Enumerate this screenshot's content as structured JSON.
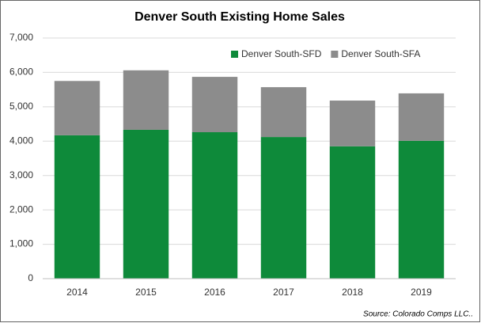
{
  "chart_data": {
    "type": "stacked_bar",
    "title": "Denver South Existing Home Sales",
    "categories": [
      "2014",
      "2015",
      "2016",
      "2017",
      "2018",
      "2019"
    ],
    "series": [
      {
        "name": "Denver South-SFD",
        "color": "#0e8a3a",
        "values": [
          4170,
          4330,
          4260,
          4120,
          3850,
          4010
        ]
      },
      {
        "name": "Denver South-SFA",
        "color": "#8c8c8c",
        "values": [
          1580,
          1730,
          1610,
          1450,
          1330,
          1380
        ]
      }
    ],
    "ylim": [
      0,
      7000
    ],
    "yticks": [
      0,
      {
        "value": 1000,
        "label": "1,000"
      },
      {
        "value": 2000,
        "label": "2,000"
      },
      {
        "value": 3000,
        "label": "3,000"
      },
      {
        "value": 4000,
        "label": "4,000"
      },
      {
        "value": 5000,
        "label": "5,000"
      },
      {
        "value": 6000,
        "label": "6,000"
      },
      {
        "value": 7000,
        "label": "7,000"
      }
    ],
    "grid": true,
    "legend": "top-right",
    "annotation": "Source: Colorado Comps LLC.."
  }
}
